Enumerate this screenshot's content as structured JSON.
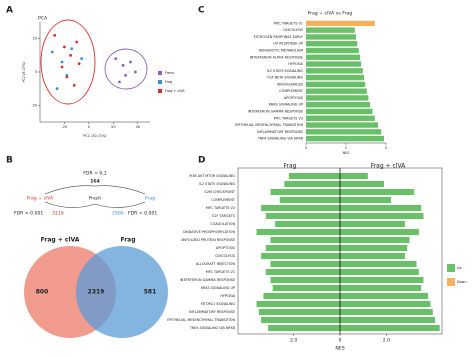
{
  "panels": [
    "A",
    "B",
    "C",
    "D"
  ],
  "chart_data": [
    {
      "type": "scatter",
      "title": "PCA",
      "xlabel": "PC1 (30.71%)",
      "ylabel": "PC2 (8.07%)",
      "xlim": [
        -40,
        50
      ],
      "ylim": [
        -30,
        30
      ],
      "xticks": [
        -20,
        0,
        20,
        40
      ],
      "yticks": [
        -20,
        0,
        20
      ],
      "series": [
        {
          "name": "Fresh",
          "color": "#8e63b5",
          "x": [
            22,
            28,
            34,
            30,
            38,
            25
          ],
          "y": [
            8,
            4,
            6,
            -2,
            0,
            -6
          ]
        },
        {
          "name": "Frag",
          "color": "#3a8fd6",
          "x": [
            -30,
            -22,
            -14,
            -6,
            -18,
            -26
          ],
          "y": [
            12,
            6,
            14,
            8,
            -2,
            -10
          ]
        },
        {
          "name": "Frag + clVA",
          "color": "#d9312b",
          "x": [
            -28,
            -20,
            -15,
            -10,
            -22,
            -8,
            -18,
            -12
          ],
          "y": [
            22,
            15,
            10,
            18,
            3,
            5,
            -3,
            -8
          ]
        }
      ]
    },
    {
      "type": "bar",
      "title": "Frag + clVA vs Frag",
      "xlabel": "NES",
      "xlim": [
        0,
        2
      ],
      "xticks": [
        0,
        1,
        2
      ],
      "categories": [
        "MYC TARGETS V1",
        "GLYCOLYSIS",
        "ESTROGEN RESPONSE EARLY",
        "UV RESPONSE UP",
        "XENOBIOTIC METABOLISM",
        "INTERFERON ALPHA RESPONSE",
        "HYPOXIA",
        "IL2 STAT5 SIGNALING",
        "TGF BETA SIGNALING",
        "ANGIOGENESIS",
        "COMPLEMENT",
        "APOPTOSIS",
        "KRAS SIGNALING UP",
        "INTERFERON GAMMA RESPONSE",
        "MYC TARGETS V2",
        "EPITHELIAL MESENCHYMAL TRANSITION",
        "INFLAMMATORY RESPONSE",
        "TNFA SIGNALING VIA NFKB"
      ],
      "values": [
        1.72,
        1.22,
        1.25,
        1.28,
        1.32,
        1.35,
        1.38,
        1.42,
        1.45,
        1.48,
        1.52,
        1.56,
        1.6,
        1.66,
        1.72,
        1.8,
        1.88,
        1.95
      ],
      "colors": [
        "#f5b160",
        "#6abf69",
        "#6abf69",
        "#6abf69",
        "#6abf69",
        "#6abf69",
        "#6abf69",
        "#6abf69",
        "#6abf69",
        "#6abf69",
        "#6abf69",
        "#6abf69",
        "#6abf69",
        "#6abf69",
        "#6abf69",
        "#6abf69",
        "#6abf69",
        "#6abf69"
      ]
    },
    {
      "type": "diverging_bar",
      "xlabel": "NES",
      "xlim": [
        -4.4,
        4.4
      ],
      "xticks": [
        {
          "value": -2,
          "label": "2.0"
        },
        0,
        {
          "value": 2,
          "label": "2.0"
        }
      ],
      "categories": [
        "PI3K AKT MTOR SIGNALING",
        "IL2 STAT5 SIGNALING",
        "G2M CHECKPOINT",
        "COMPLEMENT",
        "MYC TARGETS V2",
        "E2F TARGETS",
        "COAGULATION",
        "OXIDATIVE PHOSPHORYLATION",
        "UNFOLDED PROTEIN RESPONSE",
        "APOPTOSIS",
        "GLYCOLYSIS",
        "ALLOGRAFT REJECTION",
        "MYC TARGETS V1",
        "INTERFERON GAMMA RESPONSE",
        "KRAS SIGNALING UP",
        "HYPOXIA",
        "MTORC1 SIGNALING",
        "INFLAMMATORY RESPONSE",
        "EPITHELIAL MESENCHYMAL TRANSITION",
        "TNFA SIGNALING VIA NFKB"
      ],
      "series": [
        {
          "name": "Frag",
          "color": "#6abf69",
          "values": [
            -2.2,
            -2.4,
            -3.0,
            -2.6,
            -3.4,
            -3.2,
            -2.8,
            -3.6,
            -3.0,
            -3.2,
            -3.4,
            -3.0,
            -3.2,
            -3.0,
            -2.9,
            -3.3,
            -3.6,
            -3.5,
            -3.4,
            -3.1
          ]
        },
        {
          "name": "Frag + clVA",
          "color": "#6abf69",
          "values": [
            1.2,
            1.9,
            3.2,
            2.2,
            3.5,
            3.6,
            2.8,
            3.4,
            3.0,
            2.9,
            2.8,
            3.3,
            3.4,
            3.6,
            3.5,
            3.8,
            3.9,
            4.0,
            4.1,
            4.3
          ]
        }
      ],
      "legend": [
        {
          "name": "Up",
          "color": "#6abf69"
        },
        {
          "name": "Down",
          "color": "#f5b160"
        }
      ]
    }
  ],
  "panel_b": {
    "tree": {
      "root_label": "FDR < 0.1",
      "root_count": 164,
      "left": "Frag + clVA",
      "middle": "Fresh",
      "right": "Frag",
      "left_fdr": "FDR < 0.001",
      "left_count": 3119,
      "right_count": 2900,
      "right_fdr": "FDR < 0.001"
    },
    "venn": {
      "left_label": "Frag + clVA",
      "right_label": "Frag",
      "left_only": 800,
      "overlap": 2319,
      "right_only": 581
    }
  }
}
